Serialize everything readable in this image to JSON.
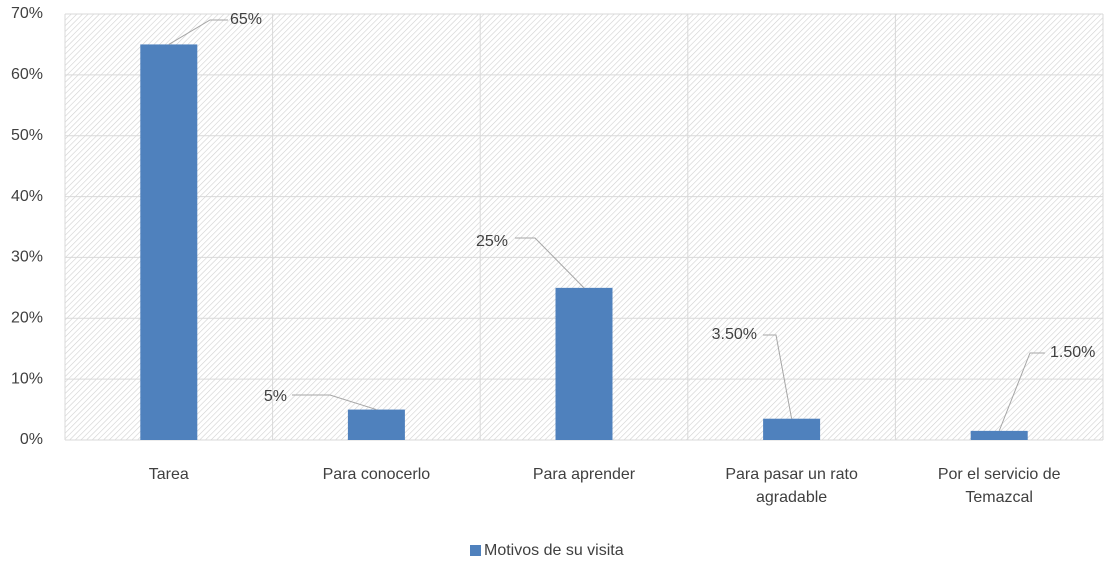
{
  "chart_data": {
    "type": "bar",
    "categories": [
      "Tarea",
      "Para conocerlo",
      "Para aprender",
      "Para pasar un rato agradable",
      "Por el servicio de Temazcal"
    ],
    "series": [
      {
        "name": "Motivos de su visita",
        "color": "#4f81bd",
        "values": [
          65,
          5,
          25,
          3.5,
          1.5
        ],
        "value_labels": [
          "65%",
          "5%",
          "25%",
          "3.50%",
          "1.50%"
        ]
      }
    ],
    "ylim": [
      0,
      70
    ],
    "yticks": [
      {
        "value": 0,
        "label": "0%"
      },
      {
        "value": 10,
        "label": "10%"
      },
      {
        "value": 20,
        "label": "20%"
      },
      {
        "value": 30,
        "label": "30%"
      },
      {
        "value": 40,
        "label": "40%"
      },
      {
        "value": 50,
        "label": "50%"
      },
      {
        "value": 60,
        "label": "60%"
      },
      {
        "value": 70,
        "label": "70%"
      }
    ],
    "grid": true,
    "legend": "bottom"
  }
}
